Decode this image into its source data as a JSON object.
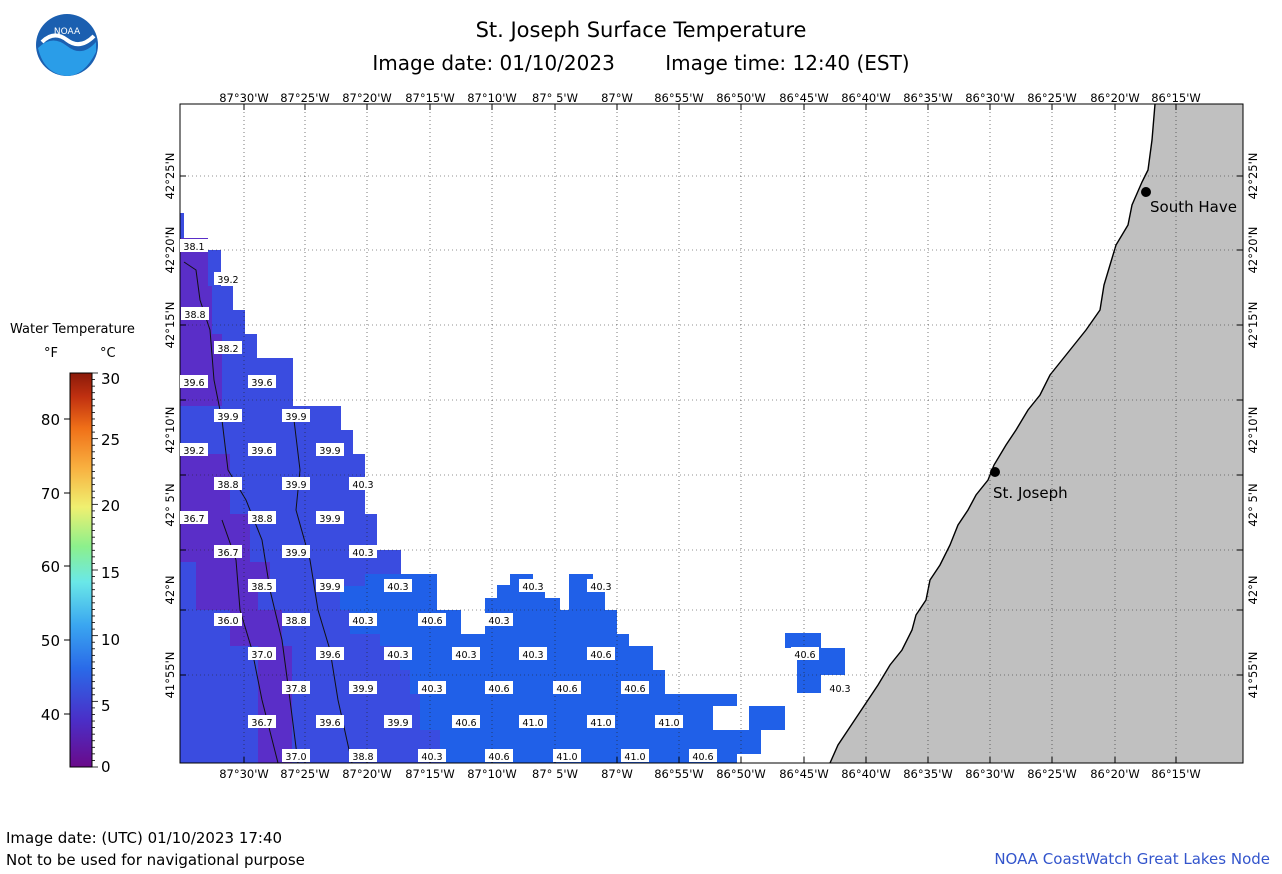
{
  "header": {
    "title": "St. Joseph Surface Temperature",
    "image_date": "Image date: 01/10/2023",
    "image_time": "Image time: 12:40 (EST)"
  },
  "logo": {
    "text": "NOAA"
  },
  "legend": {
    "title": "Water Temperature",
    "unit_f": "°F",
    "unit_c": "°C",
    "f_ticks": [
      "80",
      "70",
      "60",
      "50",
      "40"
    ],
    "c_ticks": [
      "30",
      "25",
      "20",
      "15",
      "10",
      "5",
      "0"
    ]
  },
  "map": {
    "lon_labels": [
      "87°30'W",
      "87°25'W",
      "87°20'W",
      "87°15'W",
      "87°10'W",
      "87° 5'W",
      "87°W",
      "86°55'W",
      "86°50'W",
      "86°45'W",
      "86°40'W",
      "86°35'W",
      "86°30'W",
      "86°25'W",
      "86°20'W",
      "86°15'W"
    ],
    "lat_labels": [
      "42°25'N",
      "42°20'N",
      "42°15'N",
      "42°10'N",
      "42° 5'N",
      "42°N",
      "41°55'N"
    ],
    "cities": [
      {
        "name": "South Have"
      },
      {
        "name": "St. Joseph"
      }
    ],
    "temperatures": [
      "38.1",
      "39.2",
      "38.8",
      "38.2",
      "39.6",
      "39.6",
      "39.9",
      "39.9",
      "39.2",
      "39.6",
      "39.9",
      "38.8",
      "39.9",
      "40.3",
      "36.7",
      "38.8",
      "39.9",
      "36.7",
      "39.9",
      "40.3",
      "38.5",
      "39.9",
      "40.3",
      "40.3",
      "40.3",
      "36.0",
      "38.8",
      "40.3",
      "40.6",
      "40.3",
      "37.0",
      "39.6",
      "40.3",
      "40.3",
      "40.3",
      "40.6",
      "40.6",
      "37.8",
      "39.9",
      "40.3",
      "40.6",
      "40.6",
      "40.6",
      "40.3",
      "36.7",
      "39.6",
      "39.9",
      "40.6",
      "41.0",
      "41.0",
      "41.0",
      "37.0",
      "38.8",
      "40.3",
      "40.6",
      "41.0",
      "41.0",
      "40.6"
    ],
    "colors": {
      "water_cold": "#5a2ec8",
      "water_mid": "#3a4ce0",
      "water_warm": "#2060e8",
      "land": "#c0c0c0",
      "grid": "#222222"
    }
  },
  "footer": {
    "utc_date": "Image date: (UTC) 01/10/2023  17:40",
    "warning": "Not to be used for navigational purpose",
    "credit": "NOAA CoastWatch Great Lakes Node"
  }
}
